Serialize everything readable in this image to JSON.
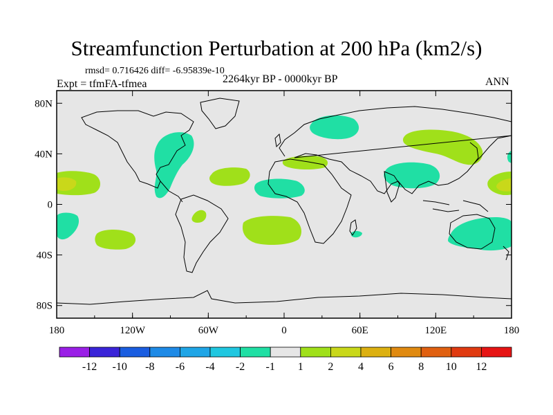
{
  "title": "Streamfunction Perturbation at 200 hPa (km2/s)",
  "stats_text": "rmsd= 0.716426 diff= -6.95839e-10",
  "period_text": "2264kyr BP - 0000kyr BP",
  "experiment_text": "Expt = tfmFA-tfmea",
  "season_text": "ANN",
  "axes": {
    "x_ticks": [
      "180",
      "120W",
      "60W",
      "0",
      "60E",
      "120E",
      "180"
    ],
    "x_values": [
      -180,
      -120,
      -60,
      0,
      60,
      120,
      180
    ],
    "y_ticks": [
      "80N",
      "40N",
      "0",
      "40S",
      "80S"
    ],
    "y_values": [
      80,
      40,
      0,
      -40,
      -80
    ],
    "lon_range": [
      -180,
      180
    ],
    "lat_range": [
      -90,
      90
    ]
  },
  "colorbar": {
    "labels": [
      "-12",
      "-10",
      "-8",
      "-6",
      "-4",
      "-2",
      "-1",
      "1",
      "2",
      "4",
      "6",
      "8",
      "10",
      "12"
    ],
    "colors": [
      "#9a1fe6",
      "#3a24d8",
      "#1a5de0",
      "#1e8ae6",
      "#1fa5e6",
      "#20c7e0",
      "#20dfa4",
      "#e6e6e6",
      "#a0e01a",
      "#c9d81a",
      "#dcb010",
      "#e08a10",
      "#e06010",
      "#e03a10",
      "#e61414"
    ]
  },
  "chart_data": {
    "type": "contour-map",
    "variable": "Streamfunction Perturbation at 200 hPa (km2/s)",
    "projection": "cylindrical-equidistant",
    "anomalies": [
      {
        "sign": "negative",
        "category": "-2 to -1",
        "center_lon": -92,
        "center_lat": 30,
        "name": "North America / Gulf"
      },
      {
        "sign": "negative",
        "category": "-2 to -1",
        "center_lon": 8,
        "center_lat": 37,
        "name": "Mediterranean"
      },
      {
        "sign": "negative",
        "category": "-2 to -1",
        "center_lon": 42,
        "center_lat": 63,
        "name": "Northern Eurasia"
      },
      {
        "sign": "negative",
        "category": "-2 to -1",
        "center_lon": -5,
        "center_lat": 10,
        "name": "Tropical Atlantic / West Africa"
      },
      {
        "sign": "negative",
        "category": "-2 to -1",
        "center_lon": 85,
        "center_lat": 17,
        "name": "South Asia"
      },
      {
        "sign": "negative",
        "category": "-2 to -1",
        "center_lon": -175,
        "center_lat": -15,
        "name": "South Pacific west"
      },
      {
        "sign": "negative",
        "category": "-2 to -1",
        "center_lon": 147,
        "center_lat": -25,
        "name": "Australia"
      },
      {
        "sign": "negative",
        "category": "-2 to -1",
        "center_lon": 190,
        "center_lat": 40,
        "name": "North Pacific east edge"
      },
      {
        "sign": "negative",
        "category": "-2 to -1",
        "center_lon": 57,
        "center_lat": -24,
        "name": "Madagascar small"
      },
      {
        "sign": "positive",
        "category": "1 to 2",
        "center_lon": -164,
        "center_lat": 16,
        "name": "Central Pacific north",
        "max_category": "2 to 4"
      },
      {
        "sign": "positive",
        "category": "1 to 2",
        "center_lon": 175,
        "center_lat": 14,
        "name": "West Pacific",
        "max_category": "2 to 4"
      },
      {
        "sign": "positive",
        "category": "1 to 2",
        "center_lon": -36,
        "center_lat": 21,
        "name": "North Atlantic"
      },
      {
        "sign": "positive",
        "category": "1 to 2",
        "center_lon": 107,
        "center_lat": 42,
        "name": "East Asia"
      },
      {
        "sign": "positive",
        "category": "1 to 2",
        "center_lon": -3,
        "center_lat": -27,
        "name": "South Atlantic"
      },
      {
        "sign": "positive",
        "category": "1 to 2",
        "center_lon": -137,
        "center_lat": -25,
        "name": "South Pacific"
      },
      {
        "sign": "positive",
        "category": "1 to 2",
        "center_lon": -65,
        "center_lat": -8,
        "name": "Amazon"
      },
      {
        "sign": "positive",
        "category": "1 to 2",
        "center_lon": 17,
        "center_lat": 38,
        "name": "Mediterranean positive"
      }
    ]
  }
}
